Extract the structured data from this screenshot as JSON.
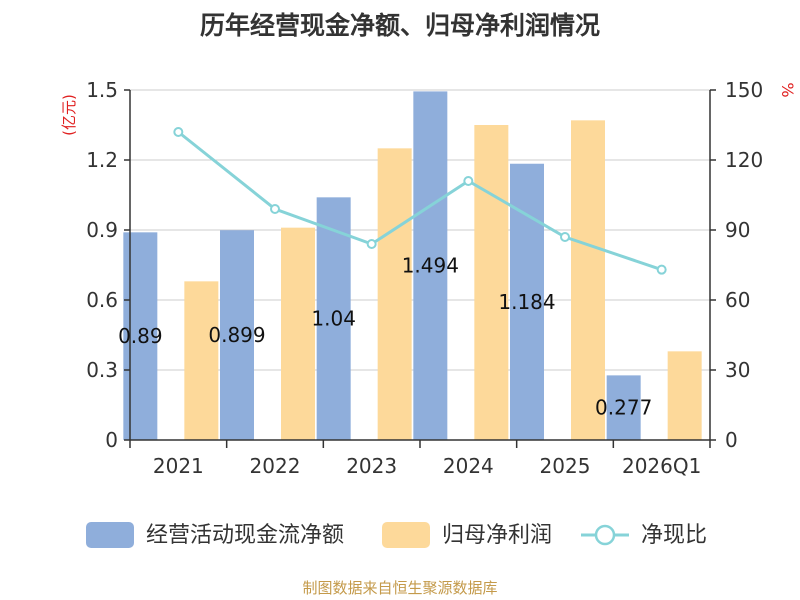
{
  "chart_data": {
    "type": "bar",
    "title": "历年经营现金净额、归母净利润情况",
    "categories": [
      "2021",
      "2022",
      "2023",
      "2024",
      "2025",
      "2026Q1"
    ],
    "series": [
      {
        "name": "经营活动现金流净额",
        "type": "bar",
        "axis": "left",
        "color": "#8faedb",
        "values": [
          0.89,
          0.899,
          1.04,
          1.494,
          1.184,
          0.277
        ],
        "labels": [
          "0.89",
          "0.899",
          "1.04",
          "1.494",
          "1.184",
          "0.277"
        ]
      },
      {
        "name": "归母净利润",
        "type": "bar",
        "axis": "left",
        "color": "#fdd99a",
        "values": [
          0.68,
          0.91,
          1.25,
          1.35,
          1.37,
          0.38
        ]
      },
      {
        "name": "净现比",
        "type": "line",
        "axis": "right",
        "color": "#86d3d8",
        "values": [
          132,
          99,
          84,
          111,
          87,
          73
        ]
      }
    ],
    "y_left": {
      "label": "(亿元)",
      "min": 0,
      "max": 1.5,
      "ticks": [
        "0",
        "0.3",
        "0.6",
        "0.9",
        "1.2",
        "1.5"
      ]
    },
    "y_right": {
      "label": "%",
      "min": 0,
      "max": 150,
      "ticks": [
        "0",
        "30",
        "60",
        "90",
        "120",
        "150"
      ]
    },
    "legend_position": "bottom",
    "grid": true
  },
  "footer": {
    "source": "制图数据来自恒生聚源数据库"
  }
}
